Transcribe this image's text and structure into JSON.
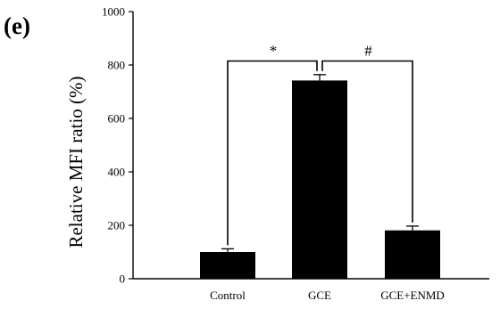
{
  "panel_label": "(e)",
  "chart_data": {
    "type": "bar",
    "categories": [
      "Control",
      "GCE",
      "GCE+ENMD"
    ],
    "values": [
      100,
      742,
      181
    ],
    "errors": [
      12,
      22,
      16
    ],
    "title": "",
    "xlabel": "",
    "ylabel": "Relative MFI ratio (%)",
    "ylim": [
      0,
      1000
    ],
    "yticks": [
      0,
      200,
      400,
      600,
      800,
      1000
    ],
    "grid": false,
    "bar_color": "#000000",
    "annotations": [
      {
        "from": "Control",
        "to": "GCE",
        "symbol": "*"
      },
      {
        "from": "GCE",
        "to": "GCE+ENMD",
        "symbol": "#"
      }
    ]
  }
}
